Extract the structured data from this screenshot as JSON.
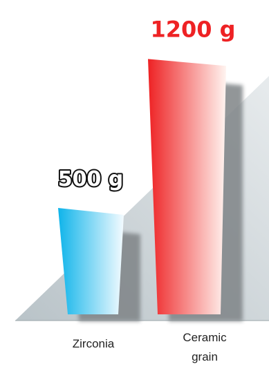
{
  "chart_data": {
    "type": "bar",
    "categories": [
      "Zirconia",
      "Ceramic grain"
    ],
    "category_lines": [
      [
        "Zirconia"
      ],
      [
        "Ceramic",
        "grain"
      ]
    ],
    "values": [
      500,
      1200
    ],
    "value_labels": [
      "500 g",
      "1200 g"
    ],
    "unit": "g",
    "title": "",
    "xlabel": "",
    "ylabel": "",
    "ylim": [
      0,
      1250
    ],
    "grid": false,
    "legend": "none"
  },
  "colors": {
    "bar_1_dark": "#0fb4ea",
    "bar_1_light": "#f4fbff",
    "bar_2_dark": "#ee2224",
    "bar_2_light": "#fff4f0",
    "label_1_fill": "#ffffff",
    "label_1_stroke": "#111111",
    "label_2_fill": "#ee2224",
    "label_2_stroke": "#ffffff",
    "backdrop": "#c9d1d5",
    "shadow": "#7f8487"
  }
}
